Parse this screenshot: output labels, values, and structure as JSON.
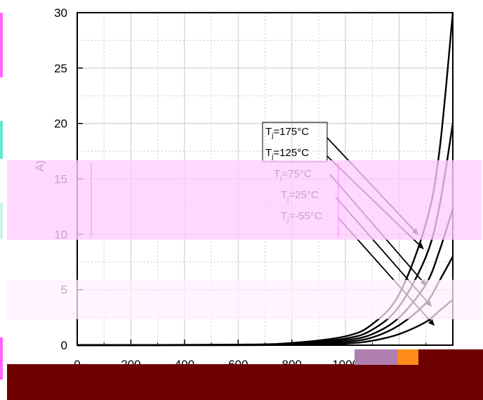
{
  "chart_data": {
    "type": "line",
    "xlabel": "",
    "ylabel_visible_fragment": "A)",
    "xlim": [
      0,
      1400
    ],
    "ylim": [
      0,
      30
    ],
    "x_ticks": [
      "0",
      "200",
      "400",
      "600",
      "800",
      "1000"
    ],
    "y_ticks": [
      "0",
      "5",
      "10",
      "15",
      "20",
      "25",
      "30"
    ],
    "grid": true,
    "series": [
      {
        "label": "T",
        "sub": "j",
        "rest": "=175°C",
        "x": [
          0,
          600,
          800,
          1000,
          1100,
          1200,
          1300,
          1350,
          1400
        ],
        "y": [
          0,
          0.05,
          0.2,
          0.8,
          1.9,
          4.6,
          11.0,
          17.5,
          30.0
        ]
      },
      {
        "label": "T",
        "sub": "j",
        "rest": "=125°C",
        "x": [
          0,
          600,
          800,
          1000,
          1100,
          1200,
          1300,
          1350,
          1400
        ],
        "y": [
          0,
          0.03,
          0.15,
          0.6,
          1.4,
          3.5,
          8.0,
          12.5,
          20.0
        ]
      },
      {
        "label": "T",
        "sub": "j",
        "rest": "=75°C",
        "x": [
          0,
          600,
          800,
          1000,
          1100,
          1200,
          1300,
          1350,
          1400
        ],
        "y": [
          0,
          0.02,
          0.1,
          0.45,
          1.0,
          2.5,
          5.5,
          8.5,
          12.3
        ]
      },
      {
        "label": "T",
        "sub": "j",
        "rest": "=25°C",
        "x": [
          0,
          600,
          800,
          1000,
          1100,
          1200,
          1300,
          1350,
          1400
        ],
        "y": [
          0,
          0.01,
          0.08,
          0.3,
          0.7,
          1.8,
          3.8,
          5.8,
          8.0
        ]
      },
      {
        "label": "T",
        "sub": "j",
        "rest": "=-55°C",
        "x": [
          0,
          600,
          800,
          1000,
          1100,
          1200,
          1300,
          1350,
          1400
        ],
        "y": [
          0,
          0.0,
          0.04,
          0.15,
          0.4,
          1.0,
          2.1,
          3.1,
          4.1
        ]
      }
    ],
    "arrow_targets": [
      {
        "x": 1270,
        "y": 10.0
      },
      {
        "x": 1290,
        "y": 8.7
      },
      {
        "x": 1300,
        "y": 5.4
      },
      {
        "x": 1320,
        "y": 3.5
      },
      {
        "x": 1330,
        "y": 1.8
      }
    ]
  },
  "colors": {
    "curve": "#000000",
    "grid": "#c8c8c8",
    "overlay_pink": "#ffccff",
    "overlay_pink_edge": "#ff66ff",
    "overlay_light_pink": "#fff0ff",
    "overlay_cyan": "#66e6cc",
    "overlay_light_cyan": "#ccf2f2",
    "footer_maroon": "#6e0000",
    "footer_noise": "#b07fb0",
    "footer_orange": "#ff8c1a",
    "arrow_violet": "#9966cc"
  }
}
